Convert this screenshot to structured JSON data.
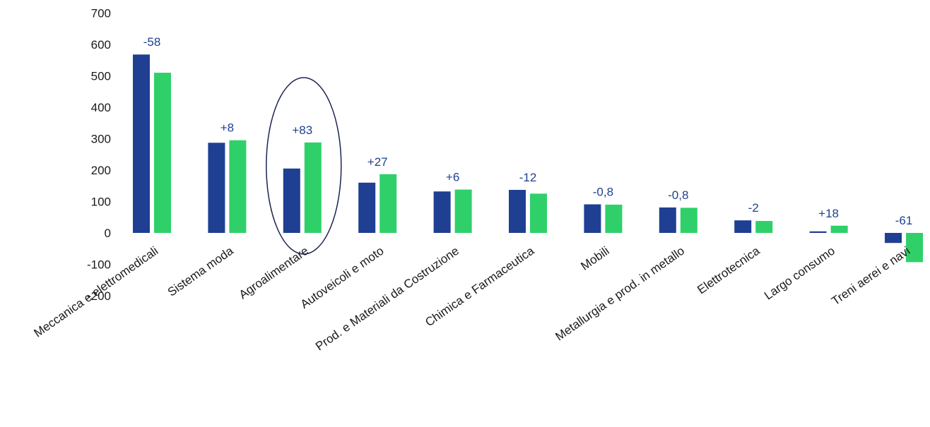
{
  "chart_data": {
    "type": "bar",
    "title": "",
    "xlabel": "",
    "ylabel": "",
    "ylim": [
      -200,
      700
    ],
    "yticks": [
      700,
      600,
      500,
      400,
      300,
      200,
      100,
      0,
      -100,
      -200
    ],
    "grid": false,
    "legend": "none",
    "categories": [
      "Meccanica e elettromedicali",
      "Sistema moda",
      "Agroalimentare",
      "Autoveicoli e moto",
      "Prod. e Materiali da Costruzione",
      "Chimica e Farmaceutica",
      "Mobili",
      "Metallurgia e prod. in metallo",
      "Elettrotecnica",
      "Largo consumo",
      "Treni aerei e navi"
    ],
    "series": [
      {
        "values": [
          568,
          287,
          205,
          160,
          132,
          137,
          91,
          81,
          40,
          5,
          -32
        ]
      },
      {
        "values": [
          510,
          295,
          288,
          187,
          138,
          125,
          90,
          80,
          38,
          23,
          -93
        ]
      }
    ],
    "data_labels": [
      "-58",
      "+8",
      "+83",
      "+27",
      "+6",
      "-12",
      "-0,8",
      "-0,8",
      "-2",
      "+18",
      "-61"
    ],
    "highlighted_category": "Agroalimentare",
    "colors": {
      "series1": "#1f3f93",
      "series2": "#2fd06a",
      "label": "#1f3f8f",
      "highlight": "#1c2452"
    }
  }
}
